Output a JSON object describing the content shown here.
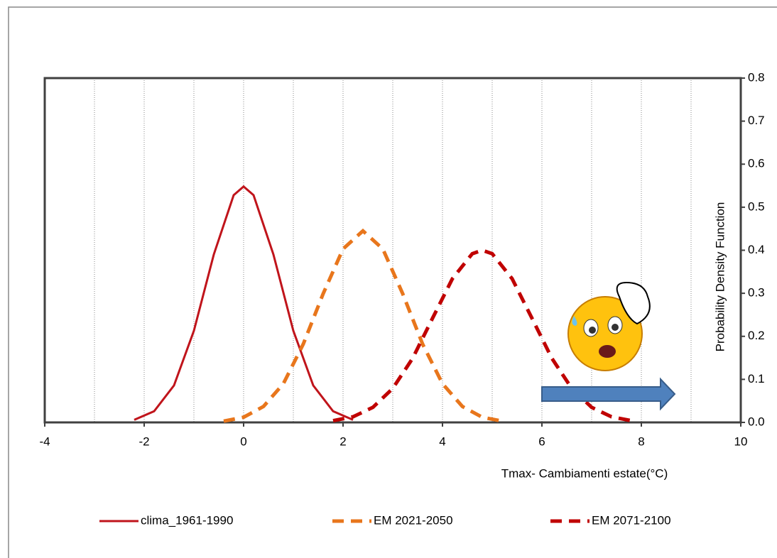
{
  "chart_data": {
    "type": "line",
    "x_label": "Tmax-  Cambiamenti estate(°C)",
    "y_label": "Probability Density Function",
    "xlim": [
      -4,
      10
    ],
    "xticks": [
      -4,
      -2,
      0,
      2,
      4,
      6,
      8,
      10
    ],
    "x_minor_ticks": [
      -3,
      -1,
      1,
      3,
      5,
      7,
      9
    ],
    "ylim": [
      0,
      0.8
    ],
    "yticks": [
      {
        "value": 0,
        "label": "0.0"
      },
      {
        "value": 0.1,
        "label": "0.1"
      },
      {
        "value": 0.2,
        "label": "0.2"
      },
      {
        "value": 0.3,
        "label": "0.3"
      },
      {
        "value": 0.4,
        "label": "0.4"
      },
      {
        "value": 0.5,
        "label": "0.5"
      },
      {
        "value": 0.6,
        "label": "0.6"
      },
      {
        "value": 0.7,
        "label": "0.7"
      },
      {
        "value": 0.8,
        "label": "0.8"
      }
    ],
    "grid": true,
    "legend": "bottom",
    "series": [
      {
        "name": "clima_1961-1990",
        "color": "#c0141b",
        "style": "solid",
        "x": [
          -2.2,
          -1.8,
          -1.4,
          -1.0,
          -0.6,
          -0.2,
          0,
          0.2,
          0.6,
          1.0,
          1.4,
          1.8,
          2.2
        ],
        "values": [
          0.006,
          0.026,
          0.086,
          0.213,
          0.39,
          0.528,
          0.548,
          0.528,
          0.39,
          0.213,
          0.086,
          0.026,
          0.006
        ]
      },
      {
        "name": "EM 2021-2050",
        "color": "#e8761c",
        "style": "dashed",
        "x": [
          -0.4,
          0,
          0.4,
          0.8,
          1.2,
          1.6,
          2.0,
          2.4,
          2.8,
          3.2,
          3.6,
          4.0,
          4.4,
          4.8,
          5.2
        ],
        "values": [
          0.003,
          0.012,
          0.037,
          0.09,
          0.182,
          0.299,
          0.403,
          0.445,
          0.403,
          0.299,
          0.182,
          0.09,
          0.037,
          0.012,
          0.003
        ]
      },
      {
        "name": "EM 2071-2100",
        "color": "#c00000",
        "style": "dashed",
        "x": [
          1.8,
          2.2,
          2.6,
          3.0,
          3.4,
          3.8,
          4.2,
          4.6,
          4.8,
          5.0,
          5.4,
          5.8,
          6.2,
          6.6,
          7.0,
          7.4,
          7.8
        ],
        "values": [
          0.004,
          0.013,
          0.035,
          0.079,
          0.149,
          0.242,
          0.334,
          0.392,
          0.4,
          0.392,
          0.334,
          0.242,
          0.149,
          0.079,
          0.035,
          0.013,
          0.004
        ]
      }
    ]
  }
}
